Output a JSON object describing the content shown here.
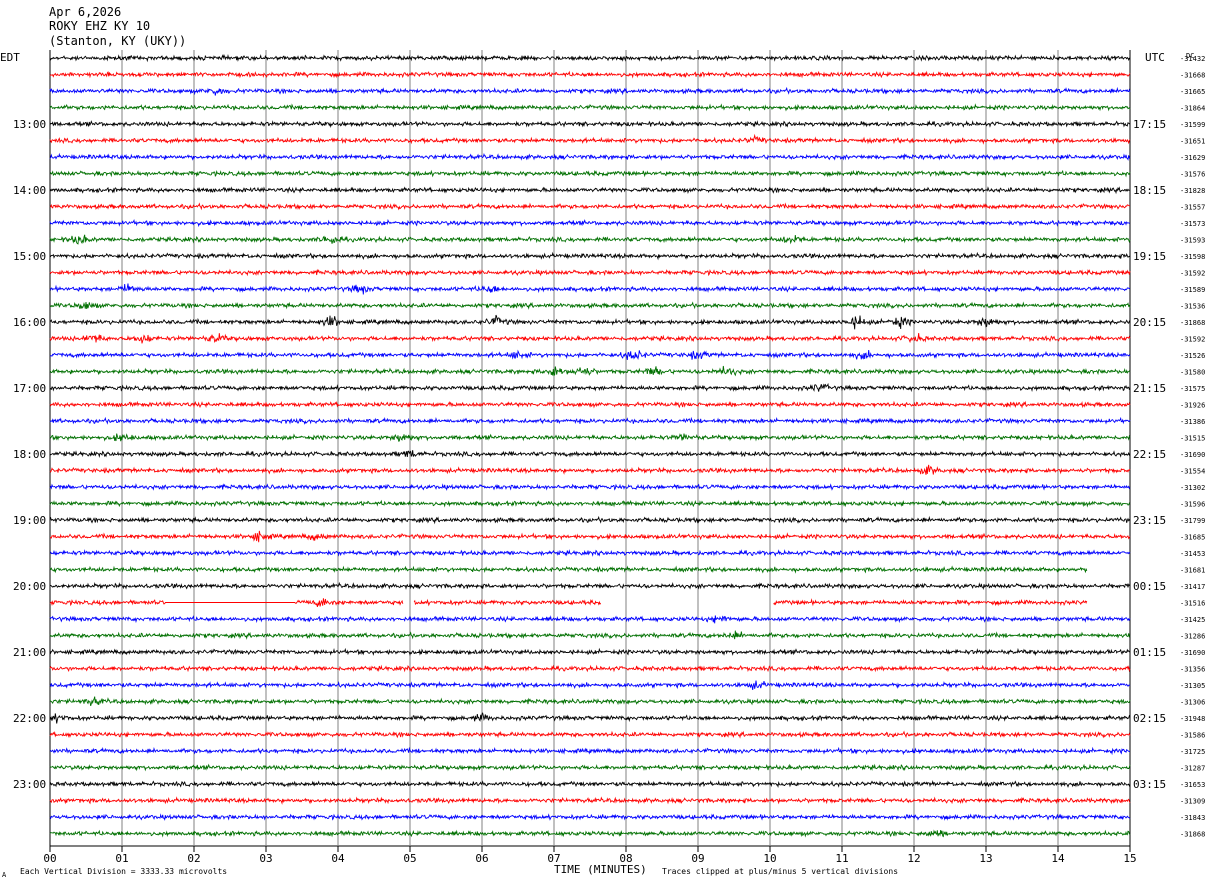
{
  "header": {
    "date": "Apr 6,2026",
    "station": "ROKY EHZ KY 10",
    "location": "(Stanton, KY (UKY))"
  },
  "footer": {
    "division_note": "Each Vertical Division = 3333.33 microvolts",
    "clip_note": "Traces clipped at plus/minus 5 vertical divisions",
    "corner_mark": "A"
  },
  "chart_data": {
    "type": "line",
    "title": "",
    "xlabel": "TIME (MINUTES)",
    "ylabel": "",
    "left_timezone": "EDT",
    "right_timezone": "UTC",
    "dc_label": "DC",
    "grid": "vertical lines at each minute",
    "xlim": [
      0,
      15
    ],
    "x_ticks": [
      "00",
      "01",
      "02",
      "03",
      "04",
      "05",
      "06",
      "07",
      "08",
      "09",
      "10",
      "11",
      "12",
      "13",
      "14",
      "15"
    ],
    "trace_colors": [
      "#000000",
      "#ff0000",
      "#0000ff",
      "#007000"
    ],
    "traces_per_hour": 4,
    "minutes_per_trace": 15,
    "left_hour_labels": [
      {
        "trace": 4,
        "label": "13:00"
      },
      {
        "trace": 8,
        "label": "14:00"
      },
      {
        "trace": 12,
        "label": "15:00"
      },
      {
        "trace": 16,
        "label": "16:00"
      },
      {
        "trace": 20,
        "label": "17:00"
      },
      {
        "trace": 24,
        "label": "18:00"
      },
      {
        "trace": 28,
        "label": "19:00"
      },
      {
        "trace": 32,
        "label": "20:00"
      },
      {
        "trace": 36,
        "label": "21:00"
      },
      {
        "trace": 40,
        "label": "22:00"
      },
      {
        "trace": 44,
        "label": "23:00"
      }
    ],
    "right_hour_labels": [
      {
        "trace": 4,
        "label": "17:15"
      },
      {
        "trace": 8,
        "label": "18:15"
      },
      {
        "trace": 12,
        "label": "19:15"
      },
      {
        "trace": 16,
        "label": "20:15"
      },
      {
        "trace": 20,
        "label": "21:15"
      },
      {
        "trace": 24,
        "label": "22:15"
      },
      {
        "trace": 28,
        "label": "23:15"
      },
      {
        "trace": 32,
        "label": "00:15"
      },
      {
        "trace": 36,
        "label": "01:15"
      },
      {
        "trace": 40,
        "label": "02:15"
      },
      {
        "trace": 44,
        "label": "03:15"
      }
    ],
    "dc_offsets": [
      "-31432",
      "-31668",
      "-31665",
      "-31864",
      "-31599",
      "-31651",
      "-31629",
      "-31576",
      "-31828",
      "-31557",
      "-31573",
      "-31593",
      "-31598",
      "-31592",
      "-31589",
      "-31536",
      "-31868",
      "-31592",
      "-31526",
      "-31580",
      "-31575",
      "-31926",
      "-31386",
      "-31515",
      "-31690",
      "-31554",
      "-31302",
      "-31596",
      "-31799",
      "-31685",
      "-31453",
      "-31681",
      "-31417",
      "-31516",
      "-31425",
      "-31286",
      "-31690",
      "-31356",
      "-31305",
      "-31306",
      "-31948",
      "-31586",
      "-31725",
      "-31287",
      "-31653",
      "-31309",
      "-31843",
      "-31868"
    ],
    "trace_events": [
      {
        "trace": 2,
        "minute": 2.3,
        "amplitude": 1.4
      },
      {
        "trace": 5,
        "minute": 9.8,
        "amplitude": 1.0
      },
      {
        "trace": 11,
        "minute": 0.4,
        "amplitude": 1.6
      },
      {
        "trace": 11,
        "minute": 3.9,
        "amplitude": 1.8
      },
      {
        "trace": 11,
        "minute": 10.3,
        "amplitude": 1.5
      },
      {
        "trace": 14,
        "minute": 1.1,
        "amplitude": 1.6
      },
      {
        "trace": 14,
        "minute": 4.3,
        "amplitude": 1.5
      },
      {
        "trace": 14,
        "minute": 6.1,
        "amplitude": 1.3
      },
      {
        "trace": 15,
        "minute": 0.5,
        "amplitude": 1.4
      },
      {
        "trace": 16,
        "minute": 3.9,
        "amplitude": 2.0
      },
      {
        "trace": 16,
        "minute": 6.2,
        "amplitude": 1.8
      },
      {
        "trace": 16,
        "minute": 11.2,
        "amplitude": 2.2
      },
      {
        "trace": 16,
        "minute": 11.8,
        "amplitude": 2.0
      },
      {
        "trace": 16,
        "minute": 13.0,
        "amplitude": 2.0
      },
      {
        "trace": 17,
        "minute": 0.6,
        "amplitude": 1.9
      },
      {
        "trace": 17,
        "minute": 1.3,
        "amplitude": 1.6
      },
      {
        "trace": 17,
        "minute": 2.3,
        "amplitude": 1.5
      },
      {
        "trace": 17,
        "minute": 12.0,
        "amplitude": 1.5
      },
      {
        "trace": 18,
        "minute": 6.5,
        "amplitude": 1.4
      },
      {
        "trace": 18,
        "minute": 8.1,
        "amplitude": 2.0
      },
      {
        "trace": 18,
        "minute": 9.0,
        "amplitude": 1.3
      },
      {
        "trace": 18,
        "minute": 11.3,
        "amplitude": 1.2
      },
      {
        "trace": 19,
        "minute": 7.0,
        "amplitude": 2.0
      },
      {
        "trace": 19,
        "minute": 7.4,
        "amplitude": 1.8
      },
      {
        "trace": 19,
        "minute": 8.4,
        "amplitude": 1.7
      },
      {
        "trace": 19,
        "minute": 9.4,
        "amplitude": 1.6
      },
      {
        "trace": 20,
        "minute": 10.7,
        "amplitude": 1.3
      },
      {
        "trace": 23,
        "minute": 1.0,
        "amplitude": 1.3
      },
      {
        "trace": 23,
        "minute": 4.9,
        "amplitude": 1.7
      },
      {
        "trace": 23,
        "minute": 8.8,
        "amplitude": 1.2
      },
      {
        "trace": 24,
        "minute": 5.0,
        "amplitude": 1.4
      },
      {
        "trace": 25,
        "minute": 12.2,
        "amplitude": 1.5
      },
      {
        "trace": 29,
        "minute": 2.9,
        "amplitude": 1.8
      },
      {
        "trace": 29,
        "minute": 3.7,
        "amplitude": 1.2
      },
      {
        "trace": 33,
        "minute": 3.8,
        "amplitude": 1.7
      },
      {
        "trace": 34,
        "minute": 9.3,
        "amplitude": 1.3
      },
      {
        "trace": 35,
        "minute": 9.5,
        "amplitude": 1.4
      },
      {
        "trace": 38,
        "minute": 9.8,
        "amplitude": 1.3
      },
      {
        "trace": 39,
        "minute": 0.6,
        "amplitude": 1.3
      },
      {
        "trace": 40,
        "minute": 0.1,
        "amplitude": 1.3
      },
      {
        "trace": 40,
        "minute": 6.0,
        "amplitude": 1.2
      },
      {
        "trace": 47,
        "minute": 12.3,
        "amplitude": 1.3
      }
    ],
    "trace_segments": [
      {
        "trace": 31,
        "minute_end": 14.4
      },
      {
        "trace": 33,
        "minute_start": 0.0,
        "minute_end": 7.65,
        "flat": [
          [
            1.6,
            3.4
          ]
        ],
        "gap": [
          [
            4.9,
            5.05
          ]
        ]
      },
      {
        "trace": 33,
        "minute_start": 10.05,
        "minute_end": 14.4
      }
    ]
  }
}
